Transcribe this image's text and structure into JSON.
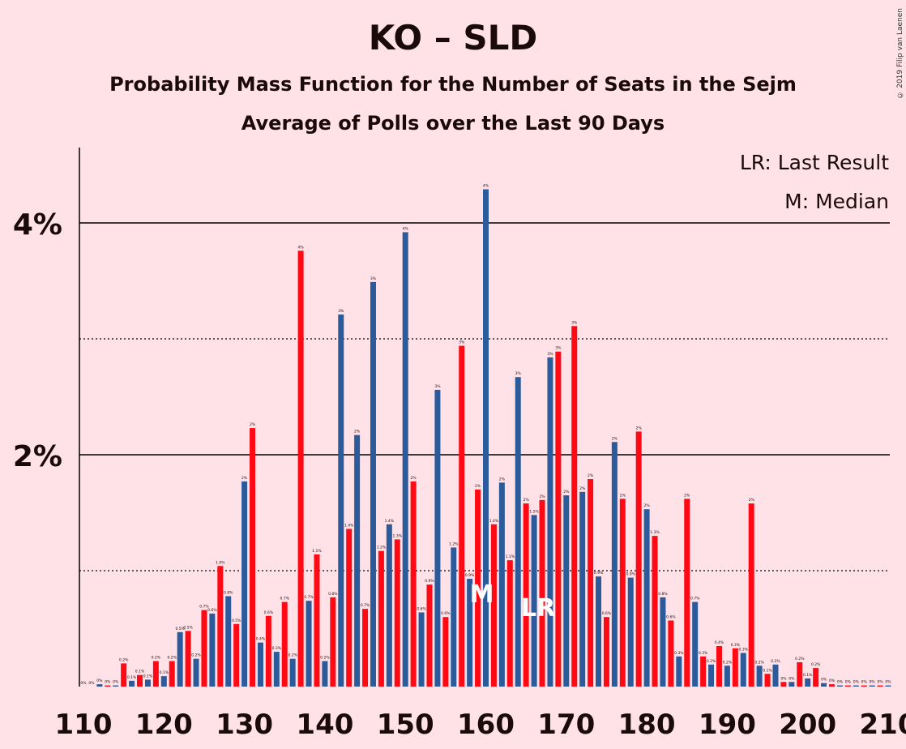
{
  "title": "KO – SLD",
  "subtitle1": "Probability Mass Function for the Number of Seats in the Sejm",
  "subtitle2": "Average of Polls over the Last 90 Days",
  "copyright": "© 2019 Filip van Laenen",
  "legend": {
    "lr": "LR: Last Result",
    "m": "M: Median"
  },
  "markers": {
    "median_label": "M",
    "median_seat": 159,
    "lr_label": "LR",
    "lr_seat": 166
  },
  "colors": {
    "background": "#FFE2E8",
    "blue": "#2C5B9C",
    "red": "#FF0A14"
  },
  "chart_data": {
    "type": "bar",
    "xlabel": "",
    "ylabel": "",
    "xlim": [
      110,
      210
    ],
    "ylim": [
      0,
      4.65
    ],
    "x_ticks": [
      110,
      120,
      130,
      140,
      150,
      160,
      170,
      180,
      190,
      200,
      210
    ],
    "y_ticks_labeled": [
      {
        "value": 2,
        "label": "2%"
      },
      {
        "value": 4,
        "label": "4%"
      }
    ],
    "y_gridlines_solid": [
      2,
      4
    ],
    "y_gridlines_dotted": [
      1,
      3
    ],
    "seats": [
      110,
      111,
      112,
      113,
      114,
      115,
      116,
      117,
      118,
      119,
      120,
      121,
      122,
      123,
      124,
      125,
      126,
      127,
      128,
      129,
      130,
      131,
      132,
      133,
      134,
      135,
      136,
      137,
      138,
      139,
      140,
      141,
      142,
      143,
      144,
      145,
      146,
      147,
      148,
      149,
      150,
      151,
      152,
      153,
      154,
      155,
      156,
      157,
      158,
      159,
      160,
      161,
      162,
      163,
      164,
      165,
      166,
      167,
      168,
      169,
      170,
      171,
      172,
      173,
      174,
      175,
      176,
      177,
      178,
      179,
      180,
      181,
      182,
      183,
      184,
      185,
      186,
      187,
      188,
      189,
      190,
      191,
      192,
      193,
      194,
      195,
      196,
      197,
      198,
      199,
      200,
      201,
      202,
      203,
      204,
      205,
      206,
      207,
      208,
      209,
      210
    ],
    "values": [
      0.0,
      0.0,
      0.02,
      0.01,
      0.01,
      0.2,
      0.05,
      0.1,
      0.06,
      0.22,
      0.09,
      0.22,
      0.47,
      0.48,
      0.24,
      0.66,
      0.63,
      1.04,
      0.78,
      0.54,
      1.77,
      2.23,
      0.38,
      0.61,
      0.3,
      0.73,
      0.24,
      3.76,
      0.74,
      1.14,
      0.22,
      0.77,
      3.21,
      1.36,
      2.17,
      0.67,
      3.49,
      1.17,
      1.4,
      1.27,
      3.92,
      1.77,
      0.64,
      0.88,
      2.56,
      0.6,
      1.2,
      2.94,
      0.93,
      1.7,
      4.29,
      1.4,
      1.76,
      1.09,
      2.67,
      1.58,
      1.48,
      1.61,
      2.84,
      2.89,
      1.65,
      3.11,
      1.68,
      1.79,
      0.95,
      0.6,
      2.11,
      1.62,
      0.94,
      2.2,
      1.53,
      1.3,
      0.77,
      0.57,
      0.26,
      1.62,
      0.73,
      0.26,
      0.19,
      0.35,
      0.18,
      0.33,
      0.29,
      1.58,
      0.18,
      0.11,
      0.19,
      0.04,
      0.04,
      0.21,
      0.07,
      0.16,
      0.03,
      0.02,
      0.01,
      0.01,
      0.01,
      0.01,
      0.01,
      0.01,
      0.01
    ],
    "bar_labels": [
      "0%",
      "0%",
      "0%",
      "0%",
      "0%",
      "0.2%",
      "0.1%",
      "0.1%",
      "0.1%",
      "0.2%",
      "0.1%",
      "0.2%",
      "0.5%",
      "0.5%",
      "0.2%",
      "0.7%",
      "0.6%",
      "1.0%",
      "0.8%",
      "0.5%",
      "2%",
      "2%",
      "0.4%",
      "0.6%",
      "0.3%",
      "0.7%",
      "0.2%",
      "4%",
      "0.7%",
      "1.1%",
      "0.2%",
      "0.8%",
      "3%",
      "1.4%",
      "2%",
      "0.7%",
      "3%",
      "1.2%",
      "1.4%",
      "1.3%",
      "4%",
      "2%",
      "0.6%",
      "0.9%",
      "3%",
      "0.6%",
      "1.2%",
      "3%",
      "0.9%",
      "2%",
      "4%",
      "1.4%",
      "2%",
      "1.1%",
      "3%",
      "2%",
      "1.5%",
      "2%",
      "3%",
      "3%",
      "2%",
      "3%",
      "2%",
      "2%",
      "0.9%",
      "0.6%",
      "2%",
      "2%",
      "0.9%",
      "2%",
      "2%",
      "1.3%",
      "0.8%",
      "0.6%",
      "0.3%",
      "2%",
      "0.7%",
      "0.3%",
      "0.2%",
      "0.4%",
      "0.2%",
      "0.3%",
      "0.3%",
      "2%",
      "0.2%",
      "0.1%",
      "0.2%",
      "0%",
      "0%",
      "0.2%",
      "0.1%",
      "0.2%",
      "0%",
      "0%",
      "0%",
      "0%",
      "0%",
      "0%",
      "0%",
      "0%",
      "0%"
    ],
    "series_colors_note": "bars alternate blue (even seats) and red (odd seats)"
  }
}
